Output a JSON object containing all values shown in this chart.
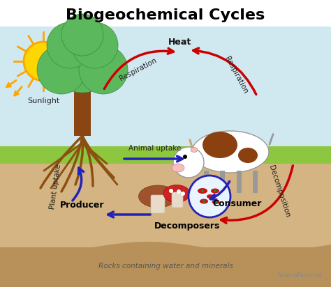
{
  "title": "Biogeochemical Cycles",
  "title_fontsize": 16,
  "title_fontweight": "bold",
  "bg_color": "#ffffff",
  "sky_color": "#d0e8f0",
  "grass_color": "#8dc63f",
  "soil_top_color": "#d4b483",
  "soil_bot_color": "#b8915a",
  "labels": {
    "sunlight": "Sunlight",
    "heat": "Heat",
    "respiration_tree": "Respiration",
    "respiration_cow": "Respiration",
    "animal_uptake": "Animal uptake",
    "consumer": "Consumer",
    "decomposition": "Decomposition",
    "decomposers": "Decomposers",
    "producer": "Producer",
    "plant_uptake": "Plant uptake",
    "rocks": "Rocks containing water and minerals"
  },
  "arrow_red": "#cc0000",
  "arrow_blue": "#2222bb",
  "sun_color": "#FFD700",
  "sun_ray_color": "#FFA500",
  "tree_trunk": "#8B4513",
  "tree_top": "#5cb85c",
  "root_color": "#8B5010",
  "watermark": "ScienceFacts.net"
}
